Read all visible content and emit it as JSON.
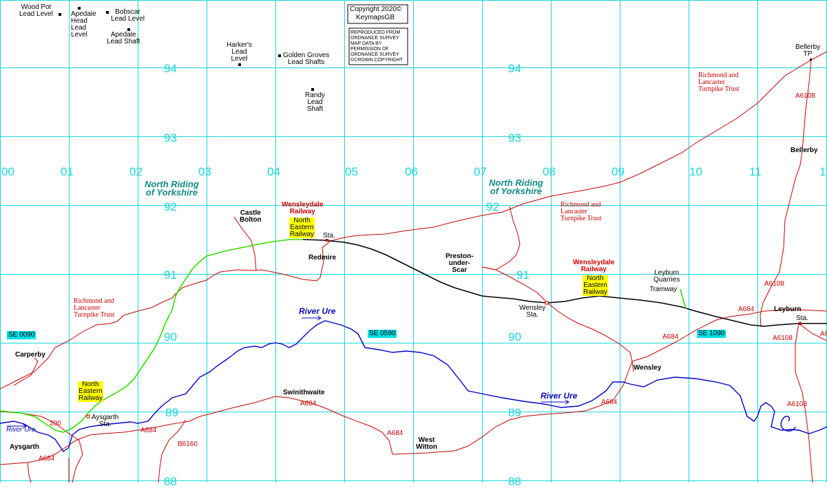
{
  "copyright": {
    "line1": "Copyright 2020©",
    "line2": "KeymapsGB",
    "notice": "REPRODUCED FROM\nORDNANCE SURVEY\nMAP DATA BY\nPERMISSION OF\nORDNANCE SURVEY\n©CROWN COPYRIGHT"
  },
  "grid": {
    "eastings": [
      "00",
      "01",
      "02",
      "03",
      "04",
      "05",
      "06",
      "07",
      "08",
      "09",
      "10",
      "11",
      "1"
    ],
    "northings": [
      "94",
      "93",
      "92",
      "91",
      "90",
      "89",
      "88"
    ],
    "refs": [
      "SE 0090",
      "SE 0590",
      "SE 1090"
    ]
  },
  "lead_sites": {
    "wood_pot": "Wood Pot\nLead Level",
    "apedale_head": "Apedale\nHead\nLead\nLevel",
    "bobscar": "Bobscar\nLead Level",
    "apedale_shaft": "Apedale\nLead Shaft",
    "harkers": "Harker's\nLead\nLevel",
    "golden_groves": "Golden Groves\nLead Shafts",
    "randy": "Randy\nLead\nShaft"
  },
  "places": {
    "bellerby_tp": "Bellerby\nTP",
    "bellerby": "Bellerby",
    "castle_bolton": "Castle\nBolton",
    "redmire": "Redmire",
    "redmire_sta": "Sta.",
    "preston": "Preston-\nunder-\nScar",
    "wensley_sta": "Wensley\nSta.",
    "leyburn_quarries": "Leyburn\nQuarries",
    "tramway": "Tramway",
    "leyburn": "Leyburn",
    "leyburn_sta": "Sta.",
    "carperby": "Carperby",
    "swinithwaite": "Swinithwaite",
    "wensley": "Wensley",
    "aysgarth_sta": "Aysgarth\nSta.",
    "aysgarth": "Aysgarth",
    "west_witton": "West\nWitton"
  },
  "county": "North Riding\nof Yorkshire",
  "turnpike": "Richmond and\nLancaster\nTurnpike Trust",
  "railway": {
    "wensleydale": "Wensleydale\nRailway",
    "ner": "North\nEastern\nRailway"
  },
  "river": "River Ure",
  "roads": {
    "a684": "A684",
    "a6108": "A6108",
    "a6": "A6",
    "b6160": "B6160",
    "r200": "200"
  },
  "colors": {
    "grid": "#19d6dc",
    "road": "#c80000",
    "river": "#0000c8",
    "railway_black": "#000000",
    "railway_green": "#30e000",
    "county": "#118a8a",
    "ner_bg": "#ffff00",
    "ref_bg": "#00e1e6"
  }
}
